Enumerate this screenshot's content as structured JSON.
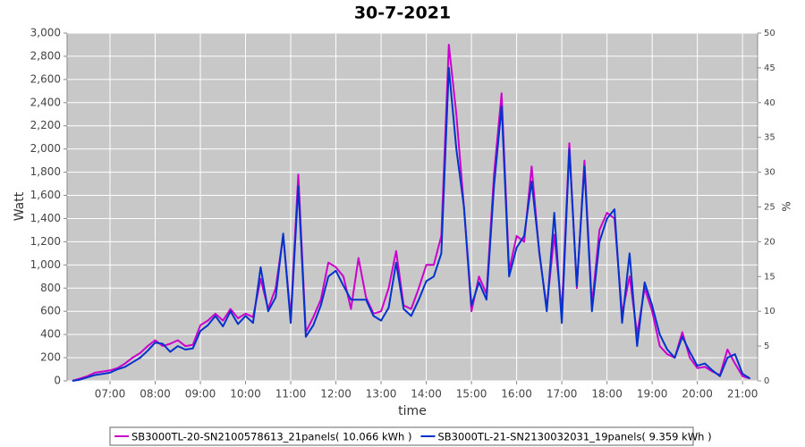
{
  "chart_data": {
    "type": "line",
    "title": "30-7-2021",
    "x_label": "time",
    "y_label": "Watt",
    "y2_label": "%",
    "x": [
      "06:10",
      "06:20",
      "06:30",
      "06:40",
      "06:50",
      "07:00",
      "07:10",
      "07:20",
      "07:30",
      "07:40",
      "07:50",
      "08:00",
      "08:10",
      "08:20",
      "08:30",
      "08:40",
      "08:50",
      "09:00",
      "09:10",
      "09:20",
      "09:30",
      "09:40",
      "09:50",
      "10:00",
      "10:10",
      "10:20",
      "10:30",
      "10:40",
      "10:50",
      "11:00",
      "11:10",
      "11:20",
      "11:30",
      "11:40",
      "11:50",
      "12:00",
      "12:10",
      "12:20",
      "12:30",
      "12:40",
      "12:50",
      "13:00",
      "13:10",
      "13:20",
      "13:30",
      "13:40",
      "13:50",
      "14:00",
      "14:10",
      "14:20",
      "14:30",
      "14:40",
      "14:50",
      "15:00",
      "15:10",
      "15:20",
      "15:30",
      "15:40",
      "15:50",
      "16:00",
      "16:10",
      "16:20",
      "16:30",
      "16:40",
      "16:50",
      "17:00",
      "17:10",
      "17:20",
      "17:30",
      "17:40",
      "17:50",
      "18:00",
      "18:10",
      "18:20",
      "18:30",
      "18:40",
      "18:50",
      "19:00",
      "19:10",
      "19:20",
      "19:30",
      "19:40",
      "19:50",
      "20:00",
      "20:10",
      "20:20",
      "20:30",
      "20:40",
      "20:50",
      "21:00",
      "21:10"
    ],
    "series": [
      {
        "name": "SB3000TL-20-SN2100578613_21panels( 10.066 kWh )",
        "color": "#cc00cc",
        "values": [
          0,
          20,
          40,
          70,
          80,
          90,
          110,
          150,
          200,
          240,
          300,
          350,
          300,
          320,
          350,
          300,
          310,
          480,
          520,
          580,
          520,
          620,
          540,
          580,
          550,
          880,
          620,
          800,
          1250,
          550,
          1780,
          420,
          550,
          700,
          1020,
          980,
          900,
          620,
          1060,
          720,
          580,
          600,
          800,
          1120,
          650,
          620,
          800,
          1000,
          1000,
          1250,
          2900,
          2300,
          1500,
          600,
          900,
          750,
          1780,
          2480,
          950,
          1250,
          1200,
          1850,
          1100,
          630,
          1260,
          600,
          2050,
          800,
          1900,
          650,
          1300,
          1450,
          1400,
          580,
          900,
          400,
          800,
          600,
          300,
          230,
          200,
          420,
          200,
          110,
          120,
          80,
          50,
          270,
          150,
          40,
          20
        ]
      },
      {
        "name": "SB3000TL-21-SN2130032031_19panels( 9.359 kWh )",
        "color": "#0033cc",
        "values": [
          0,
          10,
          30,
          50,
          60,
          70,
          100,
          120,
          160,
          200,
          260,
          330,
          320,
          250,
          300,
          270,
          280,
          430,
          480,
          560,
          470,
          600,
          490,
          560,
          500,
          980,
          600,
          720,
          1270,
          500,
          1680,
          380,
          480,
          650,
          900,
          950,
          820,
          700,
          700,
          700,
          560,
          520,
          630,
          1020,
          620,
          560,
          700,
          860,
          900,
          1100,
          2700,
          2000,
          1500,
          650,
          850,
          700,
          1680,
          2370,
          900,
          1150,
          1250,
          1720,
          1120,
          600,
          1450,
          500,
          2000,
          820,
          1850,
          600,
          1200,
          1400,
          1480,
          500,
          1100,
          300,
          850,
          650,
          400,
          270,
          200,
          380,
          250,
          130,
          150,
          90,
          40,
          200,
          230,
          60,
          20
        ]
      }
    ],
    "xlim": [
      "06:03",
      "21:20"
    ],
    "xticks": [
      "07:00",
      "08:00",
      "09:00",
      "10:00",
      "11:00",
      "12:00",
      "13:00",
      "14:00",
      "15:00",
      "16:00",
      "17:00",
      "18:00",
      "19:00",
      "20:00",
      "21:00"
    ],
    "ylim": [
      0,
      3000
    ],
    "yticks": [
      0,
      200,
      400,
      600,
      800,
      {
        "value": 1000,
        "label": "1,000"
      },
      {
        "value": 1200,
        "label": "1,200"
      },
      {
        "value": 1400,
        "label": "1,400"
      },
      {
        "value": 1600,
        "label": "1,600"
      },
      {
        "value": 1800,
        "label": "1,800"
      },
      {
        "value": 2000,
        "label": "2,000"
      },
      {
        "value": 2200,
        "label": "2,200"
      },
      {
        "value": 2400,
        "label": "2,400"
      },
      {
        "value": 2600,
        "label": "2,600"
      },
      {
        "value": 2800,
        "label": "2,800"
      },
      {
        "value": 3000,
        "label": "3,000"
      }
    ],
    "y2lim": [
      0,
      50
    ],
    "y2ticks": [
      0,
      5,
      10,
      15,
      20,
      25,
      30,
      35,
      40,
      45,
      50
    ],
    "grid": true,
    "legend": "bottom"
  }
}
